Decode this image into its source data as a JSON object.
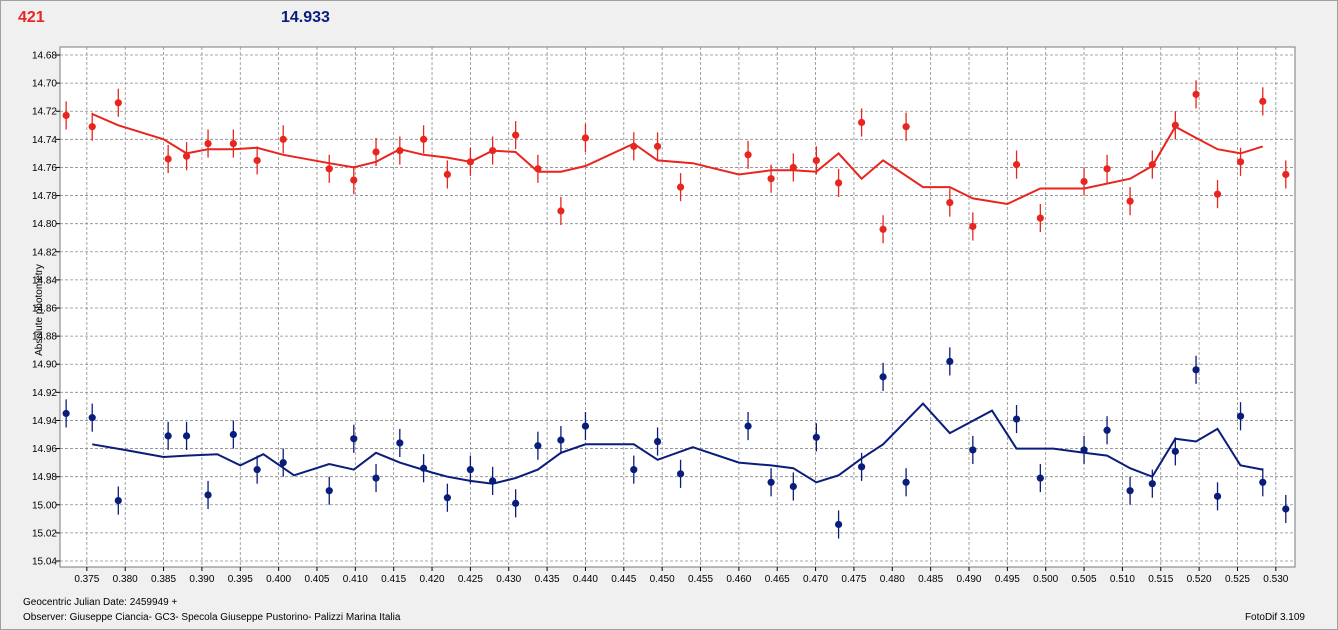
{
  "header": {
    "left_value": "421",
    "right_value": "14.933"
  },
  "footer": {
    "julian_date": "Geocentric Julian Date: 2459949 +",
    "observer": "Observer: Giuseppe Ciancia- GC3- Specola Giuseppe Pustorino- Palizzi Marina Italia",
    "software": "FotoDif 3.109"
  },
  "colors": {
    "red": "#e8251f",
    "blue": "#0b1d7a",
    "grid": "#8a8a8a"
  },
  "chart_data": {
    "type": "scatter",
    "ylabel": "Absolute photometry",
    "xlabel": "",
    "xlim": [
      0.3715,
      0.5325
    ],
    "ylim": [
      15.04,
      14.68
    ],
    "y_inverted": true,
    "grid": true,
    "x_ticks": [
      0.375,
      0.38,
      0.385,
      0.39,
      0.395,
      0.4,
      0.405,
      0.41,
      0.415,
      0.42,
      0.425,
      0.43,
      0.435,
      0.44,
      0.445,
      0.45,
      0.455,
      0.46,
      0.465,
      0.47,
      0.475,
      0.48,
      0.485,
      0.49,
      0.495,
      0.5,
      0.505,
      0.51,
      0.515,
      0.52,
      0.525,
      0.53
    ],
    "x_tick_labels": [
      "0.375",
      "0.380",
      "0.385",
      "0.390",
      "0.395",
      "0.400",
      "0.405",
      "0.410",
      "0.415",
      "0.420",
      "0.425",
      "0.430",
      "0.435",
      "0.440",
      "0.445",
      "0.450",
      "0.455",
      "0.460",
      "0.465",
      "0.470",
      "0.475",
      "0.480",
      "0.485",
      "0.490",
      "0.495",
      "0.500",
      "0.505",
      "0.510",
      "0.515",
      "0.520",
      "0.525",
      "0.530"
    ],
    "y_ticks": [
      14.68,
      14.7,
      14.72,
      14.74,
      14.76,
      14.78,
      14.8,
      14.82,
      14.84,
      14.86,
      14.88,
      14.9,
      14.92,
      14.94,
      14.96,
      14.98,
      15.0,
      15.02,
      15.04
    ],
    "y_tick_labels": [
      "14.68",
      "14.70",
      "14.72",
      "14.74",
      "14.76",
      "14.78",
      "14.80",
      "14.82",
      "14.84",
      "14.86",
      "14.88",
      "14.90",
      "14.92",
      "14.94",
      "14.96",
      "14.98",
      "15.00",
      "15.02",
      "15.04"
    ],
    "series": [
      {
        "color": "#e8251f",
        "points": [
          {
            "x": 0.3723,
            "y": 14.723,
            "err": 0.01
          },
          {
            "x": 0.3757,
            "y": 14.731,
            "err": 0.01
          },
          {
            "x": 0.3791,
            "y": 14.714,
            "err": 0.01
          },
          {
            "x": 0.3856,
            "y": 14.754,
            "err": 0.01
          },
          {
            "x": 0.388,
            "y": 14.752,
            "err": 0.01
          },
          {
            "x": 0.3908,
            "y": 14.743,
            "err": 0.01
          },
          {
            "x": 0.3941,
            "y": 14.743,
            "err": 0.01
          },
          {
            "x": 0.3972,
            "y": 14.755,
            "err": 0.01
          },
          {
            "x": 0.4006,
            "y": 14.74,
            "err": 0.01
          },
          {
            "x": 0.4066,
            "y": 14.761,
            "err": 0.01
          },
          {
            "x": 0.4098,
            "y": 14.769,
            "err": 0.01
          },
          {
            "x": 0.4127,
            "y": 14.749,
            "err": 0.01
          },
          {
            "x": 0.4158,
            "y": 14.748,
            "err": 0.01
          },
          {
            "x": 0.4189,
            "y": 14.74,
            "err": 0.01
          },
          {
            "x": 0.422,
            "y": 14.765,
            "err": 0.01
          },
          {
            "x": 0.425,
            "y": 14.756,
            "err": 0.01
          },
          {
            "x": 0.4279,
            "y": 14.748,
            "err": 0.01
          },
          {
            "x": 0.4309,
            "y": 14.737,
            "err": 0.01
          },
          {
            "x": 0.4338,
            "y": 14.761,
            "err": 0.01
          },
          {
            "x": 0.4368,
            "y": 14.791,
            "err": 0.01
          },
          {
            "x": 0.44,
            "y": 14.739,
            "err": 0.01
          },
          {
            "x": 0.4463,
            "y": 14.745,
            "err": 0.01
          },
          {
            "x": 0.4494,
            "y": 14.745,
            "err": 0.01
          },
          {
            "x": 0.4524,
            "y": 14.774,
            "err": 0.01
          },
          {
            "x": 0.4612,
            "y": 14.751,
            "err": 0.01
          },
          {
            "x": 0.4642,
            "y": 14.768,
            "err": 0.01
          },
          {
            "x": 0.4671,
            "y": 14.76,
            "err": 0.01
          },
          {
            "x": 0.4701,
            "y": 14.755,
            "err": 0.01
          },
          {
            "x": 0.473,
            "y": 14.771,
            "err": 0.01
          },
          {
            "x": 0.476,
            "y": 14.728,
            "err": 0.01
          },
          {
            "x": 0.4788,
            "y": 14.804,
            "err": 0.01
          },
          {
            "x": 0.4818,
            "y": 14.731,
            "err": 0.01
          },
          {
            "x": 0.4875,
            "y": 14.785,
            "err": 0.01
          },
          {
            "x": 0.4905,
            "y": 14.802,
            "err": 0.01
          },
          {
            "x": 0.4962,
            "y": 14.758,
            "err": 0.01
          },
          {
            "x": 0.4993,
            "y": 14.796,
            "err": 0.01
          },
          {
            "x": 0.505,
            "y": 14.77,
            "err": 0.01
          },
          {
            "x": 0.508,
            "y": 14.761,
            "err": 0.01
          },
          {
            "x": 0.511,
            "y": 14.784,
            "err": 0.01
          },
          {
            "x": 0.5139,
            "y": 14.758,
            "err": 0.01
          },
          {
            "x": 0.5169,
            "y": 14.73,
            "err": 0.01
          },
          {
            "x": 0.5196,
            "y": 14.708,
            "err": 0.01
          },
          {
            "x": 0.5224,
            "y": 14.779,
            "err": 0.01
          },
          {
            "x": 0.5254,
            "y": 14.756,
            "err": 0.01
          },
          {
            "x": 0.5283,
            "y": 14.713,
            "err": 0.01
          },
          {
            "x": 0.5313,
            "y": 14.765,
            "err": 0.01
          }
        ],
        "trend": [
          [
            0.3757,
            14.722
          ],
          [
            0.3791,
            14.73
          ],
          [
            0.385,
            14.74
          ],
          [
            0.388,
            14.75
          ],
          [
            0.3908,
            14.747
          ],
          [
            0.3941,
            14.747
          ],
          [
            0.3972,
            14.746
          ],
          [
            0.4006,
            14.751
          ],
          [
            0.4066,
            14.757
          ],
          [
            0.4098,
            14.76
          ],
          [
            0.4127,
            14.756
          ],
          [
            0.4158,
            14.747
          ],
          [
            0.4189,
            14.751
          ],
          [
            0.422,
            14.753
          ],
          [
            0.425,
            14.756
          ],
          [
            0.4279,
            14.748
          ],
          [
            0.4309,
            14.749
          ],
          [
            0.4338,
            14.763
          ],
          [
            0.4368,
            14.763
          ],
          [
            0.44,
            14.759
          ],
          [
            0.4463,
            14.743
          ],
          [
            0.4494,
            14.755
          ],
          [
            0.454,
            14.757
          ],
          [
            0.46,
            14.765
          ],
          [
            0.4642,
            14.762
          ],
          [
            0.4671,
            14.762
          ],
          [
            0.4701,
            14.763
          ],
          [
            0.473,
            14.75
          ],
          [
            0.476,
            14.768
          ],
          [
            0.4788,
            14.755
          ],
          [
            0.484,
            14.774
          ],
          [
            0.4875,
            14.774
          ],
          [
            0.4905,
            14.782
          ],
          [
            0.495,
            14.786
          ],
          [
            0.4993,
            14.775
          ],
          [
            0.505,
            14.775
          ],
          [
            0.511,
            14.768
          ],
          [
            0.5139,
            14.759
          ],
          [
            0.5169,
            14.731
          ],
          [
            0.5196,
            14.739
          ],
          [
            0.5224,
            14.747
          ],
          [
            0.5254,
            14.75
          ],
          [
            0.5283,
            14.745
          ]
        ]
      },
      {
        "color": "#0b1d7a",
        "points": [
          {
            "x": 0.3723,
            "y": 14.935,
            "err": 0.01
          },
          {
            "x": 0.3757,
            "y": 14.938,
            "err": 0.01
          },
          {
            "x": 0.3791,
            "y": 14.997,
            "err": 0.01
          },
          {
            "x": 0.3856,
            "y": 14.951,
            "err": 0.01
          },
          {
            "x": 0.388,
            "y": 14.951,
            "err": 0.01
          },
          {
            "x": 0.3908,
            "y": 14.993,
            "err": 0.01
          },
          {
            "x": 0.3941,
            "y": 14.95,
            "err": 0.01
          },
          {
            "x": 0.3972,
            "y": 14.975,
            "err": 0.01
          },
          {
            "x": 0.4006,
            "y": 14.97,
            "err": 0.01
          },
          {
            "x": 0.4066,
            "y": 14.99,
            "err": 0.01
          },
          {
            "x": 0.4098,
            "y": 14.953,
            "err": 0.01
          },
          {
            "x": 0.4127,
            "y": 14.981,
            "err": 0.01
          },
          {
            "x": 0.4158,
            "y": 14.956,
            "err": 0.01
          },
          {
            "x": 0.4189,
            "y": 14.974,
            "err": 0.01
          },
          {
            "x": 0.422,
            "y": 14.995,
            "err": 0.01
          },
          {
            "x": 0.425,
            "y": 14.975,
            "err": 0.01
          },
          {
            "x": 0.4279,
            "y": 14.983,
            "err": 0.01
          },
          {
            "x": 0.4309,
            "y": 14.999,
            "err": 0.01
          },
          {
            "x": 0.4338,
            "y": 14.958,
            "err": 0.01
          },
          {
            "x": 0.4368,
            "y": 14.954,
            "err": 0.01
          },
          {
            "x": 0.44,
            "y": 14.944,
            "err": 0.01
          },
          {
            "x": 0.4463,
            "y": 14.975,
            "err": 0.01
          },
          {
            "x": 0.4494,
            "y": 14.955,
            "err": 0.01
          },
          {
            "x": 0.4524,
            "y": 14.978,
            "err": 0.01
          },
          {
            "x": 0.4612,
            "y": 14.944,
            "err": 0.01
          },
          {
            "x": 0.4642,
            "y": 14.984,
            "err": 0.01
          },
          {
            "x": 0.4671,
            "y": 14.987,
            "err": 0.01
          },
          {
            "x": 0.4701,
            "y": 14.952,
            "err": 0.01
          },
          {
            "x": 0.473,
            "y": 15.014,
            "err": 0.01
          },
          {
            "x": 0.476,
            "y": 14.973,
            "err": 0.01
          },
          {
            "x": 0.4788,
            "y": 14.909,
            "err": 0.01
          },
          {
            "x": 0.4818,
            "y": 14.984,
            "err": 0.01
          },
          {
            "x": 0.4875,
            "y": 14.898,
            "err": 0.01
          },
          {
            "x": 0.4905,
            "y": 14.961,
            "err": 0.01
          },
          {
            "x": 0.4962,
            "y": 14.939,
            "err": 0.01
          },
          {
            "x": 0.4993,
            "y": 14.981,
            "err": 0.01
          },
          {
            "x": 0.505,
            "y": 14.961,
            "err": 0.01
          },
          {
            "x": 0.508,
            "y": 14.947,
            "err": 0.01
          },
          {
            "x": 0.511,
            "y": 14.99,
            "err": 0.01
          },
          {
            "x": 0.5139,
            "y": 14.985,
            "err": 0.01
          },
          {
            "x": 0.5169,
            "y": 14.962,
            "err": 0.01
          },
          {
            "x": 0.5196,
            "y": 14.904,
            "err": 0.01
          },
          {
            "x": 0.5224,
            "y": 14.994,
            "err": 0.01
          },
          {
            "x": 0.5254,
            "y": 14.937,
            "err": 0.01
          },
          {
            "x": 0.5283,
            "y": 14.984,
            "err": 0.01
          },
          {
            "x": 0.5313,
            "y": 15.003,
            "err": 0.01
          }
        ],
        "trend": [
          [
            0.3757,
            14.957
          ],
          [
            0.38,
            14.961
          ],
          [
            0.385,
            14.966
          ],
          [
            0.388,
            14.965
          ],
          [
            0.392,
            14.964
          ],
          [
            0.395,
            14.972
          ],
          [
            0.398,
            14.964
          ],
          [
            0.402,
            14.979
          ],
          [
            0.4066,
            14.971
          ],
          [
            0.4098,
            14.975
          ],
          [
            0.4127,
            14.963
          ],
          [
            0.4158,
            14.97
          ],
          [
            0.42,
            14.977
          ],
          [
            0.422,
            14.98
          ],
          [
            0.425,
            14.983
          ],
          [
            0.4279,
            14.985
          ],
          [
            0.4309,
            14.981
          ],
          [
            0.4338,
            14.975
          ],
          [
            0.4368,
            14.963
          ],
          [
            0.44,
            14.957
          ],
          [
            0.4463,
            14.957
          ],
          [
            0.4494,
            14.968
          ],
          [
            0.454,
            14.959
          ],
          [
            0.46,
            14.97
          ],
          [
            0.4642,
            14.972
          ],
          [
            0.4671,
            14.974
          ],
          [
            0.4701,
            14.984
          ],
          [
            0.473,
            14.979
          ],
          [
            0.476,
            14.967
          ],
          [
            0.4788,
            14.957
          ],
          [
            0.484,
            14.928
          ],
          [
            0.4875,
            14.949
          ],
          [
            0.493,
            14.933
          ],
          [
            0.4962,
            14.96
          ],
          [
            0.501,
            14.96
          ],
          [
            0.505,
            14.963
          ],
          [
            0.508,
            14.965
          ],
          [
            0.511,
            14.974
          ],
          [
            0.5139,
            14.98
          ],
          [
            0.5169,
            14.953
          ],
          [
            0.5196,
            14.955
          ],
          [
            0.5224,
            14.946
          ],
          [
            0.5254,
            14.972
          ],
          [
            0.5283,
            14.975
          ]
        ]
      }
    ]
  }
}
